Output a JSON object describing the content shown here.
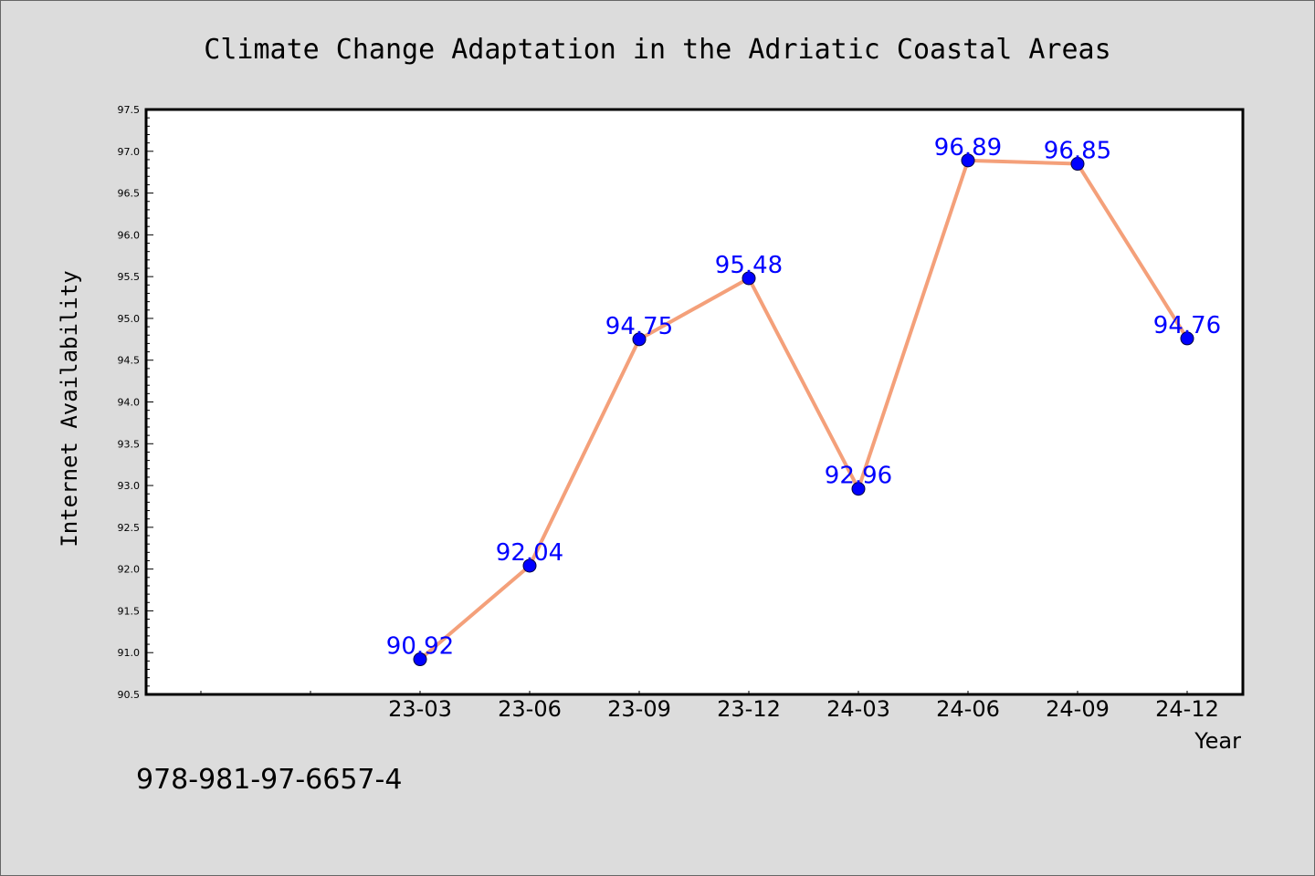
{
  "chart_data": {
    "type": "line",
    "title": "Climate Change Adaptation in the Adriatic Coastal Areas",
    "xlabel": "Year",
    "ylabel": "Internet Availability",
    "categories": [
      "23-03",
      "23-06",
      "23-09",
      "23-12",
      "24-03",
      "24-06",
      "24-09",
      "24-12"
    ],
    "series": [
      {
        "values": [
          90.92,
          92.04,
          94.75,
          95.48,
          92.96,
          96.89,
          96.85,
          94.76
        ],
        "data_labels": [
          "90.92",
          "92.04",
          "94.75",
          "95.48",
          "92.96",
          "96.89",
          "96.85",
          "94.76"
        ],
        "line_color": "#f4a07a",
        "marker_color": "#0000ff"
      }
    ],
    "ylim": [
      90.5,
      97.5
    ],
    "yticks": [
      "90.5",
      "91.0",
      "91.5",
      "92.0",
      "92.5",
      "93.0",
      "93.5",
      "94.0",
      "94.5",
      "95.0",
      "95.5",
      "96.0",
      "96.5",
      "97.0",
      "97.5"
    ],
    "grid": false,
    "legend": "none"
  },
  "footer": {
    "isbn": "978-981-97-6657-4"
  }
}
